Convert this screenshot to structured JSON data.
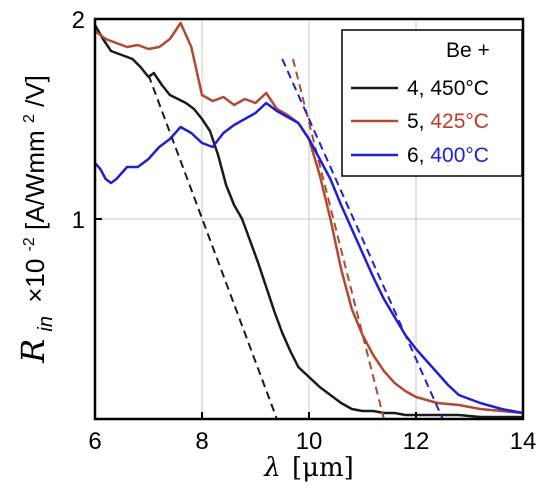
{
  "chart_data": {
    "type": "line",
    "xlabel": {
      "symbol": "λ",
      "unit": "[μm]"
    },
    "ylabel": {
      "symbol": "R",
      "subscript": "in",
      "factor": "×10",
      "factor_exp": "-2",
      "unit_pre": "[A/Wmm",
      "unit_exp": "2",
      "unit_post": "/V]"
    },
    "xlim": [
      6,
      14
    ],
    "ylim": [
      0,
      2
    ],
    "x_ticks": [
      6,
      8,
      10,
      12,
      14
    ],
    "y_ticks": [
      1,
      2
    ],
    "x_tick_labels": [
      "6",
      "8",
      "10",
      "12",
      "14"
    ],
    "y_tick_labels": [
      "1",
      "2"
    ],
    "grid": true,
    "legend_position": "top-right",
    "legend_title": "Be +",
    "series": [
      {
        "name": "4, 450°C",
        "label_prefix": "4, ",
        "label_temp": "450°C",
        "color": "#1a1a1a",
        "temp_color": "#000000",
        "x": [
          6.0,
          6.15,
          6.3,
          6.5,
          6.7,
          6.85,
          7.0,
          7.1,
          7.25,
          7.4,
          7.55,
          7.7,
          7.85,
          8.0,
          8.15,
          8.3,
          8.45,
          8.6,
          8.75,
          8.9,
          9.05,
          9.2,
          9.35,
          9.5,
          9.65,
          9.8,
          10.0,
          10.2,
          10.4,
          10.6,
          10.8,
          11.0,
          11.2,
          11.4,
          11.6,
          11.8,
          12.0,
          12.4,
          12.8,
          13.2,
          13.6,
          14.0
        ],
        "y": [
          1.97,
          1.9,
          1.84,
          1.82,
          1.8,
          1.76,
          1.71,
          1.73,
          1.67,
          1.62,
          1.6,
          1.58,
          1.55,
          1.5,
          1.44,
          1.32,
          1.17,
          1.07,
          1.0,
          0.89,
          0.78,
          0.66,
          0.54,
          0.43,
          0.34,
          0.26,
          0.21,
          0.16,
          0.12,
          0.08,
          0.05,
          0.04,
          0.04,
          0.03,
          0.03,
          0.02,
          0.02,
          0.02,
          0.02,
          0.01,
          0.01,
          0.01
        ],
        "fit": {
          "x": [
            7.0,
            9.4
          ],
          "y": [
            1.72,
            0.0
          ]
        }
      },
      {
        "name": "5, 425°C",
        "label_prefix": "5, ",
        "label_temp": "425°C",
        "color": "#b04a30",
        "temp_color": "#c0392b",
        "x": [
          6.0,
          6.2,
          6.4,
          6.6,
          6.8,
          7.0,
          7.2,
          7.4,
          7.6,
          7.8,
          8.0,
          8.2,
          8.4,
          8.6,
          8.8,
          9.0,
          9.2,
          9.4,
          9.6,
          9.8,
          10.0,
          10.2,
          10.4,
          10.6,
          10.8,
          11.0,
          11.2,
          11.4,
          11.6,
          11.8,
          12.0,
          12.4,
          12.8,
          13.2,
          13.6,
          14.0
        ],
        "y": [
          1.94,
          1.9,
          1.88,
          1.86,
          1.87,
          1.85,
          1.86,
          1.9,
          1.98,
          1.86,
          1.62,
          1.59,
          1.61,
          1.57,
          1.6,
          1.58,
          1.63,
          1.55,
          1.52,
          1.48,
          1.4,
          1.22,
          1.0,
          0.75,
          0.55,
          0.42,
          0.32,
          0.24,
          0.18,
          0.14,
          0.11,
          0.08,
          0.07,
          0.05,
          0.04,
          0.03
        ],
        "fit": {
          "x": [
            9.7,
            11.4
          ],
          "y": [
            1.8,
            0.0
          ]
        }
      },
      {
        "name": "6, 400°C",
        "label_prefix": "6, ",
        "label_temp": "400°C",
        "color": "#1f1fd6",
        "temp_color": "#1f1fd6",
        "x": [
          6.0,
          6.1,
          6.2,
          6.3,
          6.4,
          6.6,
          6.8,
          7.0,
          7.2,
          7.4,
          7.6,
          7.8,
          8.0,
          8.2,
          8.4,
          8.6,
          8.8,
          9.0,
          9.2,
          9.4,
          9.6,
          9.8,
          10.0,
          10.2,
          10.4,
          10.6,
          10.8,
          11.0,
          11.2,
          11.4,
          11.6,
          11.8,
          12.0,
          12.2,
          12.4,
          12.6,
          12.8,
          13.2,
          13.6,
          14.0
        ],
        "y": [
          1.28,
          1.25,
          1.2,
          1.18,
          1.2,
          1.26,
          1.26,
          1.3,
          1.36,
          1.4,
          1.46,
          1.43,
          1.38,
          1.36,
          1.43,
          1.47,
          1.5,
          1.53,
          1.58,
          1.54,
          1.51,
          1.48,
          1.4,
          1.3,
          1.2,
          1.07,
          0.95,
          0.83,
          0.71,
          0.6,
          0.51,
          0.42,
          0.35,
          0.29,
          0.23,
          0.17,
          0.12,
          0.08,
          0.05,
          0.03
        ],
        "fit": {
          "x": [
            9.5,
            12.5
          ],
          "y": [
            1.8,
            0.0
          ]
        }
      }
    ]
  }
}
